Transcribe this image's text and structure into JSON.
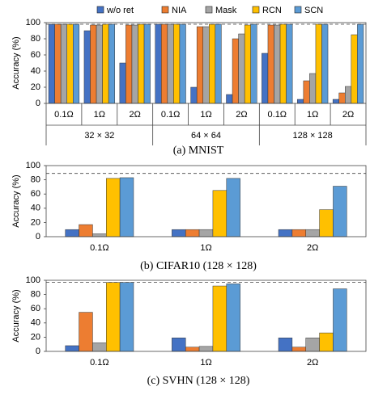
{
  "chart_data": [
    {
      "type": "bar",
      "title": "(a) MNIST",
      "ylabel": "Accuracy (%)",
      "categories": [
        "0.1Ω",
        "1Ω",
        "2Ω",
        "0.1Ω",
        "1Ω",
        "2Ω",
        "0.1Ω",
        "1Ω",
        "2Ω"
      ],
      "groups": [
        "32 × 32",
        "64 × 64",
        "128 × 128"
      ],
      "series": [
        {
          "name": "w/o ret",
          "color": "#4472c4",
          "values": [
            98,
            90,
            50,
            98,
            20,
            11,
            62,
            5,
            5
          ]
        },
        {
          "name": "NIA",
          "color": "#ed7d31",
          "values": [
            98,
            97,
            97,
            98,
            95,
            80,
            97,
            28,
            13
          ]
        },
        {
          "name": "Mask",
          "color": "#a5a5a5",
          "values": [
            98,
            97,
            97,
            98,
            95,
            86,
            97,
            37,
            21
          ]
        },
        {
          "name": "RCN",
          "color": "#ffc000",
          "values": [
            98,
            98,
            98,
            98,
            98,
            97,
            98,
            98,
            85
          ]
        },
        {
          "name": "SCN",
          "color": "#5b9bd5",
          "values": [
            98,
            98,
            98,
            98,
            98,
            98,
            98,
            98,
            98
          ]
        }
      ],
      "reference_line": 98,
      "ylim": [
        0,
        100
      ],
      "yticks": [
        0,
        20,
        40,
        60,
        80,
        100
      ],
      "grid": false
    },
    {
      "type": "bar",
      "title": "(b) CIFAR10 (128 × 128)",
      "ylabel": "Accuracy (%)",
      "categories": [
        "0.1Ω",
        "1Ω",
        "2Ω"
      ],
      "series": [
        {
          "color": "#4472c4",
          "values": [
            10,
            10,
            10
          ]
        },
        {
          "color": "#ed7d31",
          "values": [
            17,
            10,
            10
          ]
        },
        {
          "color": "#a5a5a5",
          "values": [
            4,
            10,
            10
          ]
        },
        {
          "color": "#ffc000",
          "values": [
            82,
            65,
            38
          ]
        },
        {
          "color": "#5b9bd5",
          "values": [
            83,
            82,
            71
          ]
        }
      ],
      "reference_line": 89,
      "ylim": [
        0,
        100
      ],
      "yticks": [
        0,
        20,
        40,
        60,
        80,
        100
      ],
      "grid": false
    },
    {
      "type": "bar",
      "title": "(c) SVHN (128 × 128)",
      "ylabel": "Accuracy (%)",
      "categories": [
        "0.1Ω",
        "1Ω",
        "2Ω"
      ],
      "series": [
        {
          "color": "#4472c4",
          "values": [
            8,
            19,
            19
          ]
        },
        {
          "color": "#ed7d31",
          "values": [
            55,
            6,
            6
          ]
        },
        {
          "color": "#a5a5a5",
          "values": [
            12,
            7,
            19
          ]
        },
        {
          "color": "#ffc000",
          "values": [
            97,
            92,
            26
          ]
        },
        {
          "color": "#5b9bd5",
          "values": [
            97,
            95,
            88
          ]
        }
      ],
      "reference_line": 97,
      "ylim": [
        0,
        100
      ],
      "yticks": [
        0,
        20,
        40,
        60,
        80,
        100
      ],
      "grid": false
    }
  ]
}
